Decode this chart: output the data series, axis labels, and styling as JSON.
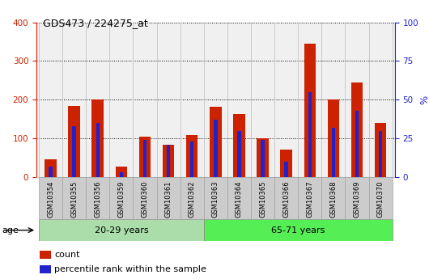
{
  "title": "GDS473 / 224275_at",
  "categories": [
    "GSM10354",
    "GSM10355",
    "GSM10356",
    "GSM10359",
    "GSM10360",
    "GSM10361",
    "GSM10362",
    "GSM10363",
    "GSM10364",
    "GSM10365",
    "GSM10366",
    "GSM10367",
    "GSM10368",
    "GSM10369",
    "GSM10370"
  ],
  "count": [
    47,
    185,
    200,
    28,
    105,
    83,
    108,
    182,
    163,
    100,
    72,
    345,
    200,
    245,
    140
  ],
  "percentile": [
    7,
    33,
    35,
    3,
    24,
    21,
    23,
    37,
    30,
    24,
    10,
    55,
    32,
    43,
    30
  ],
  "count_color": "#cc2200",
  "percentile_color": "#2222cc",
  "ylim_left": [
    0,
    400
  ],
  "ylim_right": [
    0,
    100
  ],
  "yticks_left": [
    0,
    100,
    200,
    300,
    400
  ],
  "yticks_right": [
    0,
    25,
    50,
    75,
    100
  ],
  "group1_label": "20-29 years",
  "group1_indices": 7,
  "group2_label": "65-71 years",
  "group2_indices": 8,
  "group1_color": "#aaddaa",
  "group2_color": "#55ee55",
  "age_label": "age",
  "legend_count": "count",
  "legend_percentile": "percentile rank within the sample",
  "red_bar_width": 0.5,
  "blue_bar_width": 0.15,
  "grid_color": "#000000",
  "left_tick_color": "#cc2200",
  "right_tick_color": "#2222cc",
  "right_ylabel": "%",
  "xtick_bg_color": "#cccccc",
  "plot_bg_color": "#f0f0f0",
  "separator_color": "#bbbbbb"
}
